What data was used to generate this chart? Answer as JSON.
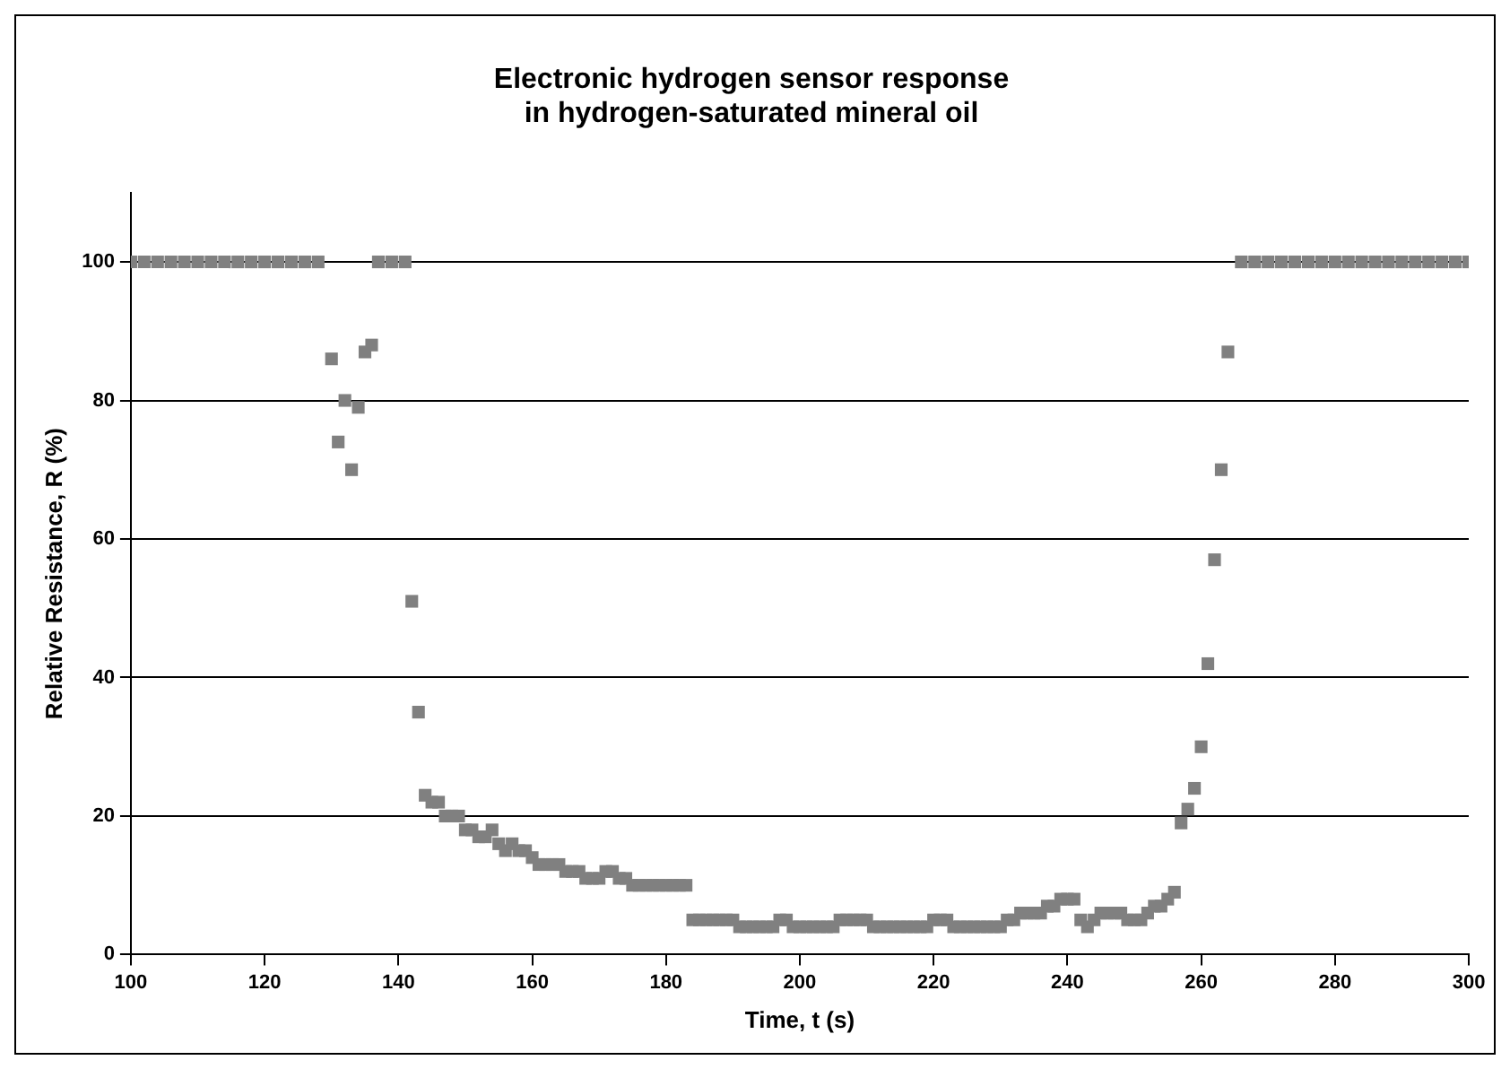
{
  "chart_data": {
    "type": "scatter",
    "title": "Electronic hydrogen sensor response\nin hydrogen-saturated mineral oil",
    "xlabel": "Time, t (s)",
    "ylabel": "Relative Resistance, R (%)",
    "xlim": [
      100,
      300
    ],
    "xticks": [
      100,
      120,
      140,
      160,
      180,
      200,
      220,
      240,
      260,
      280,
      300
    ],
    "ylim": [
      0,
      110
    ],
    "yticks": [
      0,
      20,
      40,
      60,
      80,
      100
    ],
    "grid": "y",
    "legend": false,
    "marker": "square",
    "series": [
      {
        "color": "#808080",
        "x": [
          100,
          102,
          104,
          106,
          108,
          110,
          112,
          114,
          116,
          118,
          120,
          122,
          124,
          126,
          128,
          130,
          131,
          132,
          133,
          134,
          135,
          136,
          137,
          139,
          141,
          142,
          143,
          144,
          145,
          146,
          147,
          148,
          149,
          150,
          151,
          152,
          153,
          154,
          155,
          156,
          157,
          158,
          159,
          160,
          161,
          162,
          163,
          164,
          165,
          166,
          167,
          168,
          169,
          170,
          171,
          172,
          173,
          174,
          175,
          176,
          177,
          178,
          179,
          180,
          181,
          182,
          183,
          184,
          185,
          186,
          187,
          188,
          189,
          190,
          191,
          192,
          193,
          194,
          195,
          196,
          197,
          198,
          199,
          200,
          201,
          202,
          203,
          204,
          205,
          206,
          207,
          208,
          209,
          210,
          211,
          212,
          213,
          214,
          215,
          216,
          217,
          218,
          219,
          220,
          221,
          222,
          223,
          224,
          225,
          226,
          227,
          228,
          229,
          230,
          231,
          232,
          233,
          234,
          235,
          236,
          237,
          238,
          239,
          240,
          241,
          242,
          243,
          244,
          245,
          246,
          247,
          248,
          249,
          250,
          251,
          252,
          253,
          254,
          255,
          256,
          257,
          258,
          259,
          260,
          261,
          262,
          263,
          264,
          266,
          268,
          270,
          272,
          274,
          276,
          278,
          280,
          282,
          284,
          286,
          288,
          290,
          292,
          294,
          296,
          298,
          300
        ],
        "values": [
          100,
          100,
          100,
          100,
          100,
          100,
          100,
          100,
          100,
          100,
          100,
          100,
          100,
          100,
          100,
          86,
          74,
          80,
          70,
          79,
          87,
          88,
          100,
          100,
          100,
          51,
          35,
          23,
          22,
          22,
          20,
          20,
          20,
          18,
          18,
          17,
          17,
          18,
          16,
          15,
          16,
          15,
          15,
          14,
          13,
          13,
          13,
          13,
          12,
          12,
          12,
          11,
          11,
          11,
          12,
          12,
          11,
          11,
          10,
          10,
          10,
          10,
          10,
          10,
          10,
          10,
          10,
          5,
          5,
          5,
          5,
          5,
          5,
          5,
          4,
          4,
          4,
          4,
          4,
          4,
          5,
          5,
          4,
          4,
          4,
          4,
          4,
          4,
          4,
          5,
          5,
          5,
          5,
          5,
          4,
          4,
          4,
          4,
          4,
          4,
          4,
          4,
          4,
          5,
          5,
          5,
          4,
          4,
          4,
          4,
          4,
          4,
          4,
          4,
          5,
          5,
          6,
          6,
          6,
          6,
          7,
          7,
          8,
          8,
          8,
          5,
          4,
          5,
          6,
          6,
          6,
          6,
          5,
          5,
          5,
          6,
          7,
          7,
          8,
          9,
          19,
          21,
          24,
          30,
          42,
          57,
          70,
          87,
          100,
          100,
          100,
          100,
          100,
          100,
          100,
          100,
          100,
          100,
          100,
          100,
          100,
          100,
          100,
          100,
          100,
          100
        ]
      }
    ]
  }
}
